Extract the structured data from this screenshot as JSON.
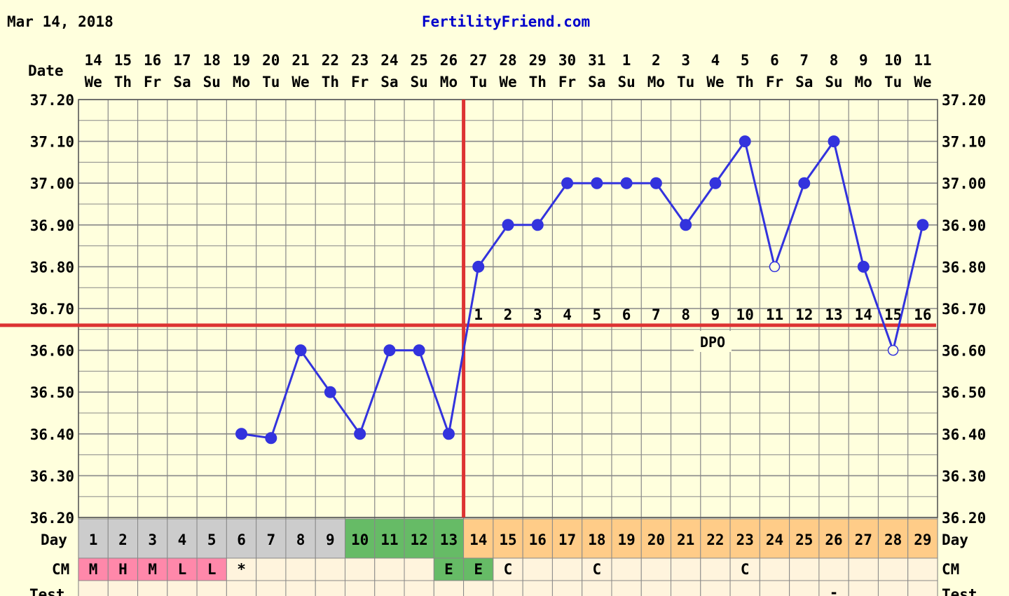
{
  "header": {
    "date": "Mar 14, 2018",
    "site": "FertilityFriend.com"
  },
  "labels": {
    "date": "Date",
    "day": "Day",
    "cm": "CM",
    "test": "Test",
    "dpo": "DPO"
  },
  "colors": {
    "background": "#ffffdd",
    "grid": "#888888",
    "line": "#3333dd",
    "coverline": "#dd3333",
    "menstrual_day": "#cccccc",
    "fertile_day": "#66bb66",
    "luteal_day": "#ffcc88",
    "cm_menstrual": "#ff88aa",
    "cm_fertile": "#66bb66",
    "cm_row": "#fff4dd"
  },
  "chart_data": {
    "type": "line",
    "title": "",
    "xlabel": "Day",
    "ylabel": "",
    "ylim": [
      36.2,
      37.2
    ],
    "yticks": [
      "36.20",
      "36.30",
      "36.40",
      "36.50",
      "36.60",
      "36.70",
      "36.80",
      "36.90",
      "37.00",
      "37.10",
      "37.20"
    ],
    "dates": [
      "14",
      "15",
      "16",
      "17",
      "18",
      "19",
      "20",
      "21",
      "22",
      "23",
      "24",
      "25",
      "26",
      "27",
      "28",
      "29",
      "30",
      "31",
      "1",
      "2",
      "3",
      "4",
      "5",
      "6",
      "7",
      "8",
      "9",
      "10",
      "11"
    ],
    "weekdays": [
      "We",
      "Th",
      "Fr",
      "Sa",
      "Su",
      "Mo",
      "Tu",
      "We",
      "Th",
      "Fr",
      "Sa",
      "Su",
      "Mo",
      "Tu",
      "We",
      "Th",
      "Fr",
      "Sa",
      "Su",
      "Mo",
      "Tu",
      "We",
      "Th",
      "Fr",
      "Sa",
      "Su",
      "Mo",
      "Tu",
      "We"
    ],
    "cycle_days": [
      "1",
      "2",
      "3",
      "4",
      "5",
      "6",
      "7",
      "8",
      "9",
      "10",
      "11",
      "12",
      "13",
      "14",
      "15",
      "16",
      "17",
      "18",
      "19",
      "20",
      "21",
      "22",
      "23",
      "24",
      "25",
      "26",
      "27",
      "28",
      "29"
    ],
    "day_phase": [
      "m",
      "m",
      "m",
      "m",
      "m",
      "m",
      "m",
      "m",
      "m",
      "f",
      "f",
      "f",
      "f",
      "l",
      "l",
      "l",
      "l",
      "l",
      "l",
      "l",
      "l",
      "l",
      "l",
      "l",
      "l",
      "l",
      "l",
      "l",
      "l"
    ],
    "series": [
      {
        "values": [
          null,
          null,
          null,
          null,
          null,
          36.4,
          36.39,
          36.6,
          36.5,
          36.4,
          36.6,
          36.6,
          36.4,
          36.8,
          36.9,
          36.9,
          37.0,
          37.0,
          37.0,
          37.0,
          36.9,
          37.0,
          37.1,
          36.8,
          37.0,
          37.1,
          36.8,
          36.6,
          36.9
        ],
        "hollow_days": [
          24,
          28
        ]
      }
    ],
    "coverline": 36.66,
    "ovulation_day": 13,
    "dpo": [
      "1",
      "2",
      "3",
      "4",
      "5",
      "6",
      "7",
      "8",
      "9",
      "10",
      "11",
      "12",
      "13",
      "14",
      "15",
      "16"
    ],
    "cm": [
      "M",
      "H",
      "M",
      "L",
      "L",
      "*",
      "",
      "",
      "",
      "",
      "",
      "",
      "E",
      "E",
      "C",
      "",
      "",
      "C",
      "",
      "",
      "",
      "",
      "C",
      "",
      "",
      "",
      "",
      "",
      ""
    ],
    "test": [
      "",
      "",
      "",
      "",
      "",
      "",
      "",
      "",
      "",
      "",
      "",
      "",
      "",
      "",
      "",
      "",
      "",
      "",
      "",
      "",
      "",
      "",
      "",
      "",
      "",
      "-",
      "",
      "",
      ""
    ]
  }
}
